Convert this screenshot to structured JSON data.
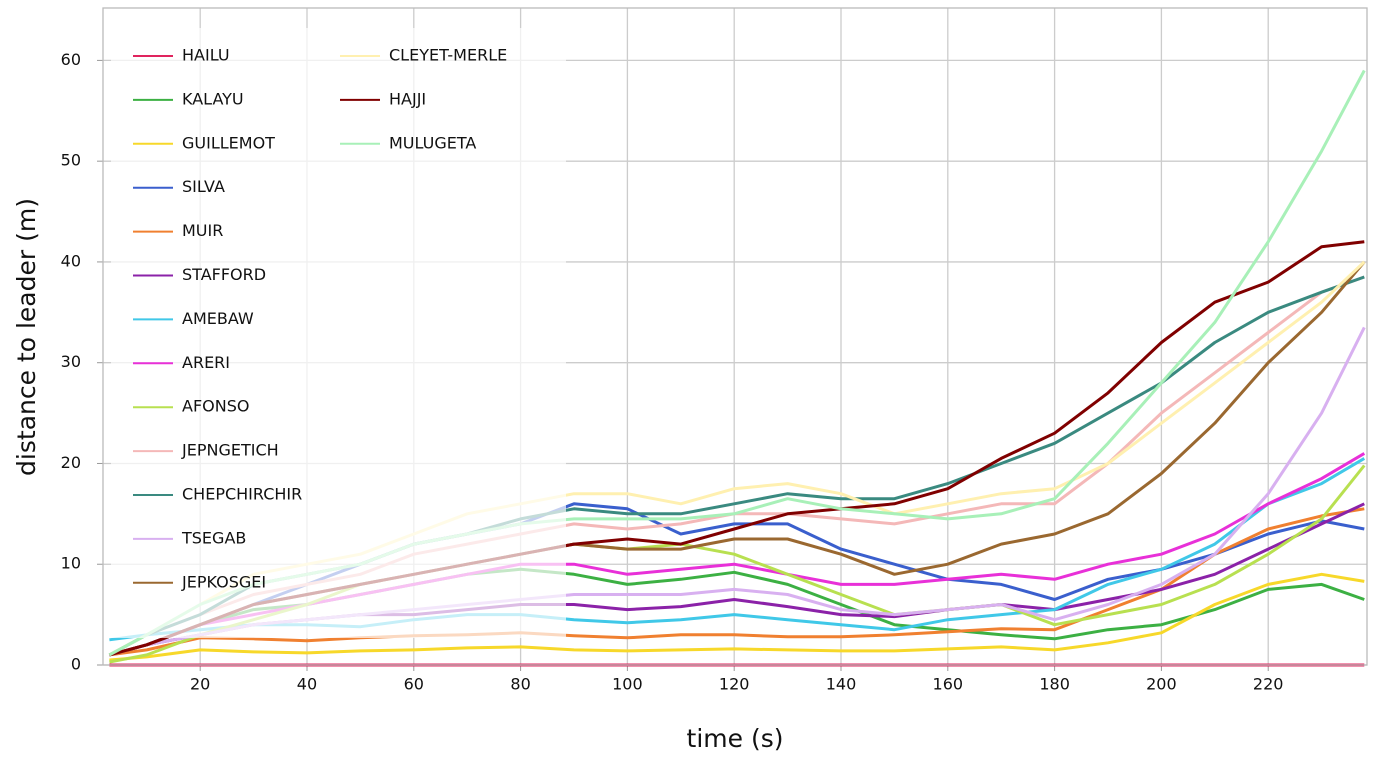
{
  "chart_data": {
    "type": "line",
    "xlabel": "time (s)",
    "ylabel": "distance to leader (m)",
    "xlim": [
      1.8,
      238.5
    ],
    "ylim": [
      0,
      65.2
    ],
    "xticks": [
      20,
      40,
      60,
      80,
      100,
      120,
      140,
      160,
      180,
      200,
      220
    ],
    "yticks": [
      0,
      10,
      20,
      30,
      40,
      50,
      60
    ],
    "grid": true,
    "legend": "upper left",
    "x": [
      3,
      10,
      20,
      30,
      40,
      50,
      60,
      70,
      80,
      90,
      100,
      110,
      120,
      130,
      140,
      150,
      160,
      170,
      180,
      190,
      200,
      210,
      220,
      230,
      238
    ],
    "series": [
      {
        "name": "HAILU",
        "color": "#e0245e",
        "values": [
          0,
          0,
          0,
          0,
          0,
          0,
          0,
          0,
          0,
          0,
          0,
          0,
          0,
          0,
          0,
          0,
          0,
          0,
          0,
          0,
          0,
          0,
          0,
          0,
          0
        ]
      },
      {
        "name": "KALAYU",
        "color": "#3cb043",
        "values": [
          1,
          2,
          4,
          5.5,
          6,
          7,
          8,
          9,
          9.5,
          9,
          8,
          8.5,
          9.2,
          8,
          6,
          4,
          3.5,
          3,
          2.6,
          3.5,
          4,
          5.5,
          7.5,
          8,
          6.5
        ]
      },
      {
        "name": "GUILLEMOT",
        "color": "#f7d82a",
        "values": [
          0.5,
          0.8,
          1.5,
          1.3,
          1.2,
          1.4,
          1.5,
          1.7,
          1.8,
          1.5,
          1.4,
          1.5,
          1.6,
          1.5,
          1.4,
          1.4,
          1.6,
          1.8,
          1.5,
          2.2,
          3.2,
          6,
          8,
          9,
          8.3
        ]
      },
      {
        "name": "SILVA",
        "color": "#3a5fcd",
        "values": [
          1,
          2,
          4,
          6,
          8,
          10,
          12,
          13,
          14,
          16,
          15.5,
          13,
          14,
          14,
          11.5,
          10,
          8.5,
          8,
          6.5,
          8.5,
          9.5,
          11,
          13,
          14.3,
          13.5
        ]
      },
      {
        "name": "MUIR",
        "color": "#f08030",
        "values": [
          1,
          1.5,
          2.7,
          2.6,
          2.4,
          2.7,
          2.9,
          3,
          3.2,
          2.9,
          2.7,
          3,
          3,
          2.8,
          2.8,
          3,
          3.3,
          3.6,
          3.5,
          5.5,
          7.5,
          11,
          13.5,
          14.8,
          15.5
        ]
      },
      {
        "name": "STAFFORD",
        "color": "#8b22a8",
        "values": [
          1,
          2,
          3,
          4,
          4.5,
          5,
          5,
          5.5,
          6,
          6,
          5.5,
          5.8,
          6.5,
          5.8,
          5,
          4.8,
          5.5,
          6,
          5.5,
          6.5,
          7.5,
          9,
          11.5,
          14,
          16
        ]
      },
      {
        "name": "AMEBAW",
        "color": "#40c8e8",
        "values": [
          2.5,
          3,
          3.5,
          4,
          4,
          3.8,
          4.5,
          5,
          5,
          4.5,
          4.2,
          4.5,
          5,
          4.5,
          4,
          3.5,
          4.5,
          5,
          5.5,
          8,
          9.5,
          12,
          16,
          18,
          20.5
        ]
      },
      {
        "name": "ARERI",
        "color": "#e830d8",
        "values": [
          1,
          2,
          4,
          5,
          6,
          7,
          8,
          9,
          10,
          10,
          9,
          9.5,
          10,
          9,
          8,
          8,
          8.5,
          9,
          8.5,
          10,
          11,
          13,
          16,
          18.5,
          21
        ]
      },
      {
        "name": "AFONSO",
        "color": "#b8e050",
        "values": [
          0.3,
          1,
          3,
          4.5,
          6,
          8,
          9,
          10,
          11,
          12,
          11.5,
          12,
          11,
          9,
          7,
          5,
          5.5,
          6,
          4,
          5,
          6,
          8,
          11,
          14.5,
          19.8
        ]
      },
      {
        "name": "JEPNGETICH",
        "color": "#f4b8b8",
        "values": [
          1,
          3,
          5,
          7,
          8,
          9,
          11,
          12,
          13,
          14,
          13.5,
          14,
          15,
          15,
          14.5,
          14,
          15,
          16,
          16,
          20,
          25,
          29,
          33,
          37,
          38.5
        ]
      },
      {
        "name": "CHEPCHIRCHIR",
        "color": "#3a8a80",
        "values": [
          1,
          3,
          5,
          8,
          9,
          10,
          12,
          13,
          14.5,
          15.5,
          15,
          15,
          16,
          17,
          16.5,
          16.5,
          18,
          20,
          22,
          25,
          28,
          32,
          35,
          37,
          38.5
        ]
      },
      {
        "name": "TSEGAB",
        "color": "#d8b0f0",
        "values": [
          1,
          2,
          3,
          4,
          4.5,
          5,
          5.5,
          6,
          6.5,
          7,
          7,
          7,
          7.5,
          7,
          5.5,
          5,
          5.5,
          6,
          4.5,
          6,
          8,
          11,
          17,
          25,
          33.5
        ]
      },
      {
        "name": "JEPKOSGEI",
        "color": "#9a6830",
        "values": [
          1,
          2,
          4,
          6,
          7,
          8,
          9,
          10,
          11,
          12,
          11.5,
          11.5,
          12.5,
          12.5,
          11,
          9,
          10,
          12,
          13,
          15,
          19,
          24,
          30,
          35,
          40
        ]
      },
      {
        "name": "CLEYET-MERLE",
        "color": "#fff0b0",
        "values": [
          1,
          3,
          6,
          9,
          10,
          11,
          13,
          15,
          16,
          17,
          17,
          16,
          17.5,
          18,
          17,
          15,
          16,
          17,
          17.5,
          20,
          24,
          28,
          32,
          36,
          40
        ]
      },
      {
        "name": "HAJJI",
        "color": "#800000",
        "values": [
          1,
          2,
          4,
          6,
          7,
          8,
          9,
          10,
          11,
          12,
          12.5,
          12,
          13.5,
          15,
          15.5,
          16,
          17.5,
          20.5,
          23,
          27,
          32,
          36,
          38,
          41.5,
          42
        ]
      },
      {
        "name": "MULUGETA",
        "color": "#a8f0b8",
        "values": [
          1,
          3,
          6,
          8,
          9,
          10,
          12,
          13,
          14,
          14.5,
          14.5,
          14.5,
          15,
          16.5,
          15.5,
          15,
          14.5,
          15,
          16.5,
          22,
          28,
          34,
          42,
          51,
          59
        ]
      }
    ]
  }
}
